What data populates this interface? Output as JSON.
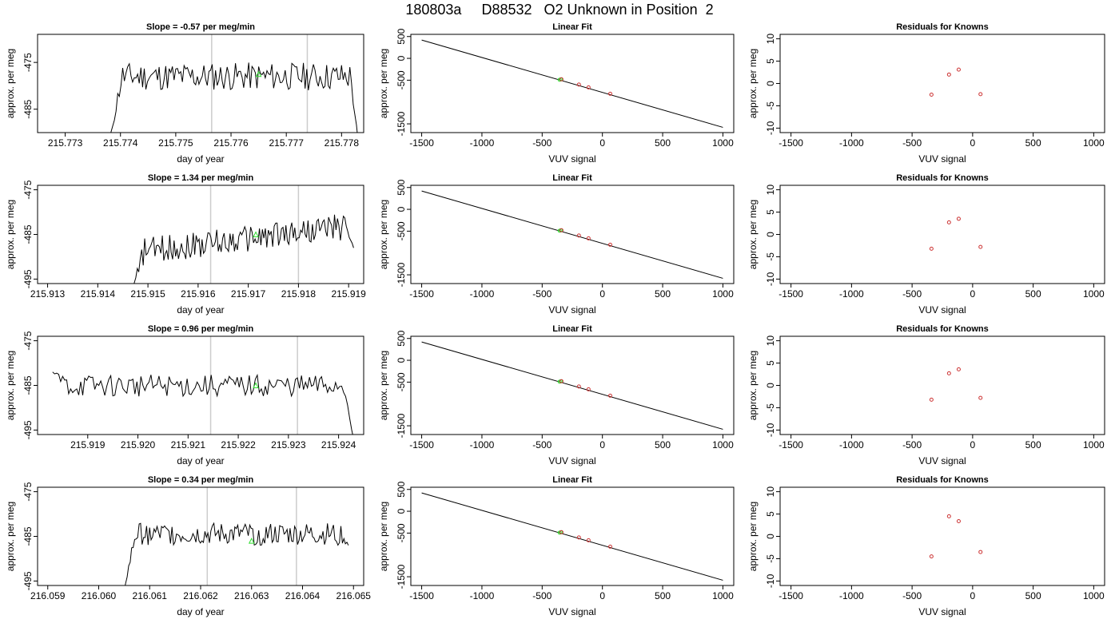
{
  "figure_title": "180803a     D88532   O2 Unknown in Position  2",
  "colors": {
    "line": "#000000",
    "grid_vline": "#cccccc",
    "marker_green": "#33dd33",
    "residual_red": "#cc3333"
  },
  "chart_data": [
    {
      "type": "line",
      "title": "Slope =  -0.57  per meg/min",
      "xlabel": "day of year",
      "ylabel": "approx. per meg",
      "xlim": [
        215.7725,
        215.7784
      ],
      "ylim": [
        -490,
        -469
      ],
      "xticks": [
        "215.773",
        "215.774",
        "215.775",
        "215.776",
        "215.777",
        "215.778"
      ],
      "yticks": [
        "-475",
        "-485"
      ],
      "vlines": [
        215.77565,
        215.77738
      ],
      "trace_range": [
        215.7738,
        215.7783
      ],
      "trace_baseline": -478,
      "trace_noise": 3,
      "trace_start": -492,
      "trace_end": -492,
      "marker": {
        "x": 215.7765,
        "y": -477.5
      }
    },
    {
      "type": "scatter",
      "title": "Linear Fit",
      "xlabel": "VUV signal",
      "ylabel": "approx. per meg",
      "xlim": [
        -1590,
        1090
      ],
      "ylim": [
        -1700,
        550
      ],
      "xticks": [
        "-1500",
        "-1000",
        "-500",
        "0",
        "500",
        "1000"
      ],
      "yticks": [
        "500",
        "0",
        "-500",
        "-1500"
      ],
      "fit_line": [
        [
          -1500,
          420
        ],
        [
          1000,
          -1580
        ]
      ],
      "points": [
        [
          -340,
          -480
        ],
        [
          -195,
          -600
        ],
        [
          -115,
          -665
        ],
        [
          65,
          -810
        ]
      ],
      "green_points": [
        [
          -355,
          -490
        ],
        [
          -345,
          -482
        ]
      ]
    },
    {
      "type": "scatter",
      "title": "Residuals for Knowns",
      "xlabel": "VUV signal",
      "ylabel": "approx. per meg",
      "xlim": [
        -1590,
        1090
      ],
      "ylim": [
        -11,
        11
      ],
      "xticks": [
        "-1500",
        "-1000",
        "-500",
        "0",
        "500",
        "1000"
      ],
      "yticks": [
        "10",
        "5",
        "0",
        "-5",
        "-10"
      ],
      "points": [
        [
          -340,
          -2.5
        ],
        [
          -195,
          2.0
        ],
        [
          -115,
          3.1
        ],
        [
          65,
          -2.4
        ]
      ]
    },
    {
      "type": "line",
      "title": "Slope =  1.34  per meg/min",
      "xlabel": "day of year",
      "ylabel": "approx. per meg",
      "xlim": [
        215.9128,
        215.9193
      ],
      "ylim": [
        -496,
        -474
      ],
      "xticks": [
        "215.913",
        "215.914",
        "215.915",
        "215.916",
        "215.917",
        "215.918",
        "215.919"
      ],
      "yticks": [
        "-475",
        "-485",
        "-495"
      ],
      "vlines": [
        215.91625,
        215.918
      ],
      "trace_range": [
        215.9147,
        215.9191
      ],
      "trace_baseline": -486,
      "trace_noise": 3,
      "trace_trend": 6,
      "trace_start": -497,
      "trace_end": -488,
      "marker": {
        "x": 215.91715,
        "y": -485
      }
    },
    {
      "type": "scatter",
      "title": "Linear Fit",
      "xlabel": "VUV signal",
      "ylabel": "approx. per meg",
      "xlim": [
        -1590,
        1090
      ],
      "ylim": [
        -1700,
        550
      ],
      "xticks": [
        "-1500",
        "-1000",
        "-500",
        "0",
        "500",
        "1000"
      ],
      "yticks": [
        "500",
        "0",
        "-500",
        "-1500"
      ],
      "fit_line": [
        [
          -1500,
          420
        ],
        [
          1000,
          -1580
        ]
      ],
      "points": [
        [
          -340,
          -480
        ],
        [
          -195,
          -600
        ],
        [
          -115,
          -665
        ],
        [
          65,
          -810
        ]
      ],
      "green_points": [
        [
          -355,
          -490
        ],
        [
          -345,
          -482
        ]
      ]
    },
    {
      "type": "scatter",
      "title": "Residuals for Knowns",
      "xlabel": "VUV signal",
      "ylabel": "approx. per meg",
      "xlim": [
        -1590,
        1090
      ],
      "ylim": [
        -11,
        11
      ],
      "xticks": [
        "-1500",
        "-1000",
        "-500",
        "0",
        "500",
        "1000"
      ],
      "yticks": [
        "10",
        "5",
        "0",
        "-5",
        "-10"
      ],
      "points": [
        [
          -340,
          -3.2
        ],
        [
          -195,
          2.7
        ],
        [
          -115,
          3.5
        ],
        [
          65,
          -2.8
        ]
      ]
    },
    {
      "type": "line",
      "title": "Slope =  0.96  per meg/min",
      "xlabel": "day of year",
      "ylabel": "approx. per meg",
      "xlim": [
        215.918,
        215.9245
      ],
      "ylim": [
        -496,
        -474
      ],
      "xticks": [
        "215.919",
        "215.920",
        "215.921",
        "215.922",
        "215.923",
        "215.924"
      ],
      "yticks": [
        "-475",
        "-485",
        "-495"
      ],
      "vlines": [
        215.92145,
        215.92318
      ],
      "trace_range": [
        215.9183,
        215.9243
      ],
      "trace_baseline": -485,
      "trace_noise": 2.5,
      "trace_start": -482,
      "trace_end": -497,
      "marker": {
        "x": 215.92235,
        "y": -485
      }
    },
    {
      "type": "scatter",
      "title": "Linear Fit",
      "xlabel": "VUV signal",
      "ylabel": "approx. per meg",
      "xlim": [
        -1590,
        1090
      ],
      "ylim": [
        -1700,
        550
      ],
      "xticks": [
        "-1500",
        "-1000",
        "-500",
        "0",
        "500",
        "1000"
      ],
      "yticks": [
        "500",
        "0",
        "-500",
        "-1500"
      ],
      "fit_line": [
        [
          -1500,
          420
        ],
        [
          1000,
          -1580
        ]
      ],
      "points": [
        [
          -340,
          -480
        ],
        [
          -195,
          -600
        ],
        [
          -115,
          -665
        ],
        [
          65,
          -810
        ]
      ],
      "green_points": [
        [
          -355,
          -490
        ],
        [
          -345,
          -482
        ]
      ]
    },
    {
      "type": "scatter",
      "title": "Residuals for Knowns",
      "xlabel": "VUV signal",
      "ylabel": "approx. per meg",
      "xlim": [
        -1590,
        1090
      ],
      "ylim": [
        -11,
        11
      ],
      "xticks": [
        "-1500",
        "-1000",
        "-500",
        "0",
        "500",
        "1000"
      ],
      "yticks": [
        "10",
        "5",
        "0",
        "-5",
        "-10"
      ],
      "points": [
        [
          -340,
          -3.2
        ],
        [
          -195,
          2.7
        ],
        [
          -115,
          3.6
        ],
        [
          65,
          -2.8
        ]
      ]
    },
    {
      "type": "line",
      "title": "Slope =  0.34  per meg/min",
      "xlabel": "day of year",
      "ylabel": "approx. per meg",
      "xlim": [
        216.0588,
        216.0652
      ],
      "ylim": [
        -496,
        -474
      ],
      "xticks": [
        "216.059",
        "216.060",
        "216.061",
        "216.062",
        "216.063",
        "216.064",
        "216.065"
      ],
      "yticks": [
        "-475",
        "-485",
        "-495"
      ],
      "vlines": [
        216.06213,
        216.06388
      ],
      "trace_range": [
        216.0605,
        216.0649
      ],
      "trace_baseline": -484.5,
      "trace_noise": 2.5,
      "trace_start": -497,
      "trace_end": -487,
      "marker": {
        "x": 216.063,
        "y": -486
      }
    },
    {
      "type": "scatter",
      "title": "Linear Fit",
      "xlabel": "VUV signal",
      "ylabel": "approx. per meg",
      "xlim": [
        -1590,
        1090
      ],
      "ylim": [
        -1700,
        550
      ],
      "xticks": [
        "-1500",
        "-1000",
        "-500",
        "0",
        "500",
        "1000"
      ],
      "yticks": [
        "500",
        "0",
        "-500",
        "-1500"
      ],
      "fit_line": [
        [
          -1500,
          420
        ],
        [
          1000,
          -1580
        ]
      ],
      "points": [
        [
          -340,
          -480
        ],
        [
          -195,
          -600
        ],
        [
          -115,
          -665
        ],
        [
          65,
          -810
        ]
      ],
      "green_points": [
        [
          -355,
          -490
        ],
        [
          -345,
          -482
        ]
      ]
    },
    {
      "type": "scatter",
      "title": "Residuals for Knowns",
      "xlabel": "VUV signal",
      "ylabel": "approx. per meg",
      "xlim": [
        -1590,
        1090
      ],
      "ylim": [
        -11,
        11
      ],
      "xticks": [
        "-1500",
        "-1000",
        "-500",
        "0",
        "500",
        "1000"
      ],
      "yticks": [
        "10",
        "5",
        "0",
        "-5",
        "-10"
      ],
      "points": [
        [
          -340,
          -4.5
        ],
        [
          -195,
          4.5
        ],
        [
          -115,
          3.4
        ],
        [
          65,
          -3.5
        ]
      ]
    }
  ]
}
